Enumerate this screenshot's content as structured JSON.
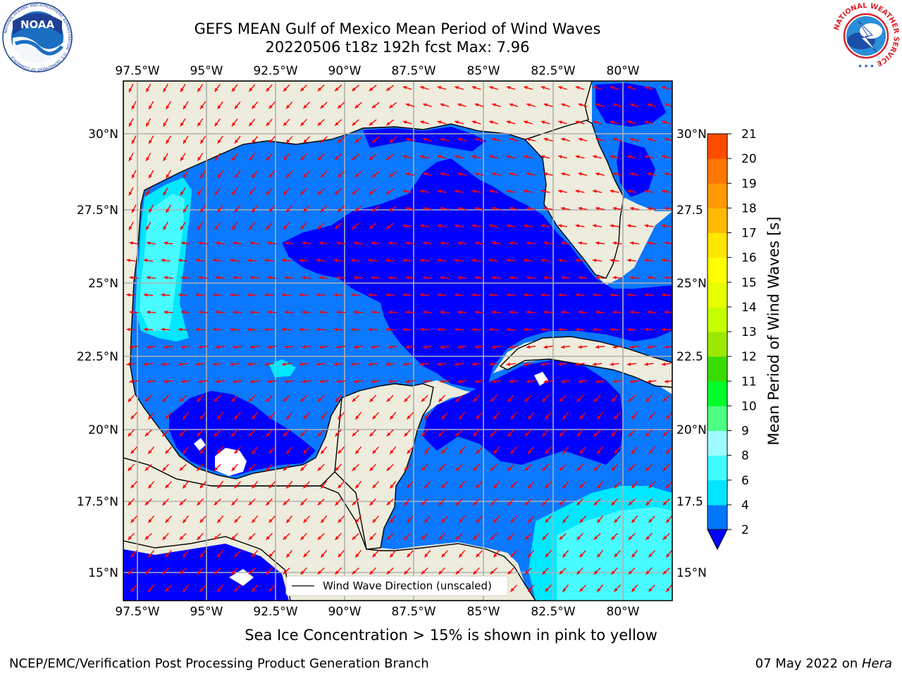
{
  "title_line1": "GEFS MEAN Gulf of Mexico Mean Period of Wind Waves",
  "title_line2": "20220506 t18z 192h fcst   Max: 7.96",
  "lon_labels": [
    "97.5°W",
    "95°W",
    "92.5°W",
    "90°W",
    "87.5°W",
    "85°W",
    "82.5°W",
    "80°W"
  ],
  "lat_labels_left": [
    "30°N",
    "27.5°N",
    "25°N",
    "22.5°N",
    "20°N",
    "17.5°N",
    "15°N"
  ],
  "lat_labels_right": [
    "30°N",
    "27.5",
    "25°N",
    "22.5",
    "20°N",
    "17.5",
    "15°N"
  ],
  "legend_label": "Wind Wave Direction (unscaled)",
  "colorbar": {
    "title": "Mean Period of Wind Waves [s]",
    "ticks": [
      "2",
      "4",
      "6",
      "8",
      "9",
      "10",
      "11",
      "12",
      "13",
      "14",
      "15",
      "16",
      "17",
      "18",
      "19",
      "20",
      "21"
    ],
    "colors": [
      "#0077ff",
      "#00e5ff",
      "#3ffbff",
      "#9efbff",
      "#4dff84",
      "#00ff2a",
      "#39dd00",
      "#9de800",
      "#c6ff00",
      "#e8ff00",
      "#ffff00",
      "#ffe600",
      "#ffbb00",
      "#ff9900",
      "#ff7700",
      "#ff4b00",
      "#ff1a00"
    ]
  },
  "palette": {
    "land": "#eeecdc",
    "ocean_low": "#0000ff",
    "ocean_2_4": "#0a78ff",
    "ocean_4_6": "#00e8ff",
    "ocean_6_8": "#48fbff",
    "arrow": "#ff0000",
    "grid": "#b0b0b0"
  },
  "sea_ice_note": "Sea Ice Concentration > 15% is shown in pink to yellow",
  "credit": "NCEP/EMC/Verification Post Processing Product Generation Branch",
  "date_text": "07 May 2022 on ",
  "date_host": "Hera",
  "logos": {
    "noaa_text": "NOAA",
    "noaa_ring": "NATIONAL OCEANIC AND ATMOSPHERIC ADMINISTRATION · U.S. DEPARTMENT OF COMMERCE",
    "nws_ring": "NATIONAL WEATHER SERVICE"
  }
}
